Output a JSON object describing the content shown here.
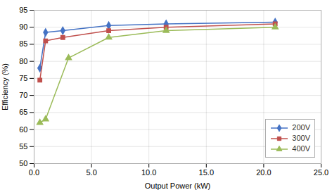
{
  "chart_data": {
    "type": "line",
    "xlabel": "Output Power (kW)",
    "ylabel": "Efficiency (%)",
    "series": [
      {
        "name": "200V",
        "color": "#4472C4",
        "marker": "diamond",
        "x": [
          0.5,
          1.0,
          2.5,
          6.5,
          11.5,
          21.0
        ],
        "values": [
          78.0,
          88.5,
          89.0,
          90.5,
          91.0,
          91.5
        ]
      },
      {
        "name": "300V",
        "color": "#C0504D",
        "marker": "square",
        "x": [
          0.5,
          1.0,
          2.5,
          6.5,
          11.5,
          21.0
        ],
        "values": [
          74.5,
          86.0,
          87.0,
          89.0,
          90.0,
          91.0
        ]
      },
      {
        "name": "400V",
        "color": "#9BBB59",
        "marker": "triangle",
        "x": [
          0.5,
          1.0,
          3.0,
          6.5,
          11.5,
          21.0
        ],
        "values": [
          62.0,
          63.0,
          81.0,
          87.0,
          89.0,
          90.0
        ]
      }
    ],
    "xlim": [
      0,
      25.0
    ],
    "ylim": [
      50,
      95
    ],
    "xticks": [
      {
        "value": 0.0,
        "label": "0.0"
      },
      {
        "value": 5.0,
        "label": "5.0"
      },
      {
        "value": 10.0,
        "label": "10.0"
      },
      {
        "value": 15.0,
        "label": "15.0"
      },
      {
        "value": 20.0,
        "label": "20.0"
      },
      {
        "value": 25.0,
        "label": "25.0"
      }
    ],
    "yticks": [
      50,
      55,
      60,
      65,
      70,
      75,
      80,
      85,
      90,
      95
    ],
    "grid": true,
    "legend": "lower right"
  }
}
